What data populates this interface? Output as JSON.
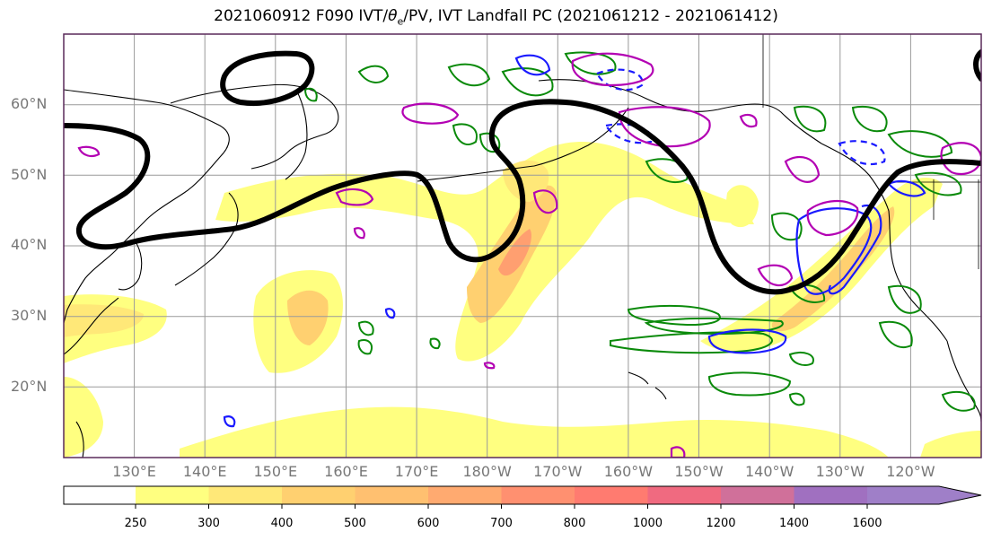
{
  "title": {
    "prefix": "2021060912 F090 IVT/",
    "theta": "θ",
    "theta_sub": "e",
    "suffix": "/PV, IVT Landfall PC (2021061212 - 2021061412)"
  },
  "map": {
    "projection": "equirectangular",
    "lon_range": [
      120,
      250
    ],
    "lat_range": [
      10,
      70
    ],
    "grid": true,
    "lat_labels": [
      "60°N",
      "50°N",
      "40°N",
      "30°N",
      "20°N"
    ],
    "lon_labels": [
      "130°E",
      "140°E",
      "150°E",
      "160°E",
      "170°E",
      "180°W",
      "170°W",
      "160°W",
      "150°W",
      "140°W",
      "130°W",
      "120°W"
    ],
    "layers": {
      "ivt_shading": "IVT filled contours (yellow → orange → red)",
      "pv_contour": "black thick line (dynamic tropopause / jet axis)",
      "theta_e_contours": "green outlines",
      "positive_pc": "magenta outlines",
      "negative_pc": "blue outlines"
    },
    "colors": {
      "land_outline": "#000000",
      "pv_line": "#000000",
      "theta_e": "#0a8a0a",
      "pc_positive": "#b300b3",
      "pc_negative": "#1a1aff",
      "frame": "#5a2a5a"
    }
  },
  "colorbar": {
    "levels": [
      "250",
      "300",
      "400",
      "500",
      "600",
      "700",
      "800",
      "1000",
      "1200",
      "1400",
      "1600"
    ],
    "colors": [
      "#ffffff",
      "#ffff80",
      "#ffe878",
      "#ffd070",
      "#ffc070",
      "#ffaa70",
      "#ff9070",
      "#ff7b70",
      "#f06a80",
      "#d0709a",
      "#a070c0",
      "#9f7fc8"
    ],
    "extend": "max"
  }
}
